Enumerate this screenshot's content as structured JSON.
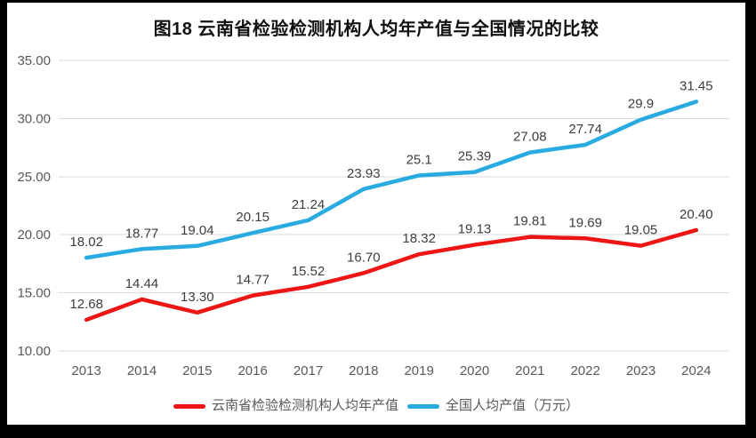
{
  "title": "图18  云南省检验检测机构人均年产值与全国情况的比较",
  "chart_data": {
    "type": "line",
    "title": "图18  云南省检验检测机构人均年产值与全国情况的比较",
    "categories": [
      "2013",
      "2014",
      "2015",
      "2016",
      "2017",
      "2018",
      "2019",
      "2020",
      "2021",
      "2022",
      "2023",
      "2024"
    ],
    "series": [
      {
        "name": "云南省检验检测机构人均年产值",
        "color": "#ee1515",
        "values": [
          12.68,
          14.44,
          13.3,
          14.77,
          15.52,
          16.7,
          18.32,
          19.13,
          19.81,
          19.69,
          19.05,
          20.4
        ],
        "labels": [
          "12.68",
          "14.44",
          "13.30",
          "14.77",
          "15.52",
          "16.70",
          "18.32",
          "19.13",
          "19.81",
          "19.69",
          "19.05",
          "20.40"
        ]
      },
      {
        "name": "全国人均产值（万元）",
        "color": "#29abe2",
        "values": [
          18.02,
          18.77,
          19.04,
          20.15,
          21.24,
          23.93,
          25.1,
          25.39,
          27.08,
          27.74,
          29.9,
          31.45
        ],
        "labels": [
          "18.02",
          "18.77",
          "19.04",
          "20.15",
          "21.24",
          "23.93",
          "25.1",
          "25.39",
          "27.08",
          "27.74",
          "29.9",
          "31.45"
        ]
      }
    ],
    "xlabel": "",
    "ylabel": "",
    "ylim": [
      10,
      35
    ],
    "y_ticks": [
      "10.00",
      "15.00",
      "20.00",
      "25.00",
      "30.00",
      "35.00"
    ],
    "grid": true,
    "legend_position": "bottom"
  },
  "legend": {
    "items": [
      {
        "label": "云南省检验检测机构人均年产值",
        "color": "#ee1515"
      },
      {
        "label": "全国人均产值（万元）",
        "color": "#29abe2"
      }
    ]
  },
  "colors": {
    "grid": "#d9d9d9",
    "axis_text": "#595959",
    "data_label_text": "#3d3d3d",
    "frame": "#000000",
    "background": "#ffffff"
  }
}
